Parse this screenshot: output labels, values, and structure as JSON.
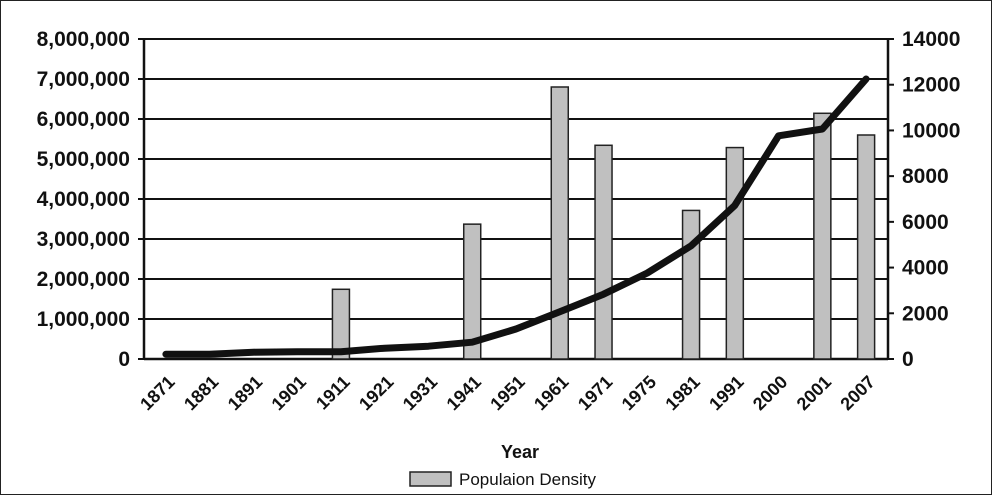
{
  "chart_data": {
    "type": "bar",
    "categories": [
      "1871",
      "1881",
      "1891",
      "1901",
      "1911",
      "1921",
      "1931",
      "1941",
      "1951",
      "1961",
      "1971",
      "1975",
      "1981",
      "1991",
      "2000",
      "2001",
      "2007"
    ],
    "xlabel": "Year",
    "y_left": {
      "ticks": [
        "0",
        "1,000,000",
        "2,000,000",
        "3,000,000",
        "4,000,000",
        "5,000,000",
        "6,000,000",
        "7,000,000",
        "8,000,000"
      ],
      "ylim": [
        0,
        8000000
      ]
    },
    "y_right": {
      "ticks": [
        "0",
        "2000",
        "4000",
        "6000",
        "8000",
        "10000",
        "12000",
        "14000"
      ],
      "ylim": [
        0,
        14000
      ]
    },
    "grid": true,
    "legend_position": "bottom",
    "series": [
      {
        "name": "Populaion Density",
        "kind": "bar",
        "axis": "right",
        "color": "#c0c0c0",
        "values": [
          null,
          null,
          null,
          null,
          3050,
          null,
          null,
          5900,
          null,
          11900,
          9350,
          null,
          6500,
          9250,
          null,
          10750,
          9800
        ]
      },
      {
        "kind": "line",
        "axis": "left",
        "color": "#111111",
        "values": [
          120000,
          120000,
          170000,
          180000,
          180000,
          270000,
          320000,
          420000,
          750000,
          1180000,
          1620000,
          2150000,
          2830000,
          3840000,
          5580000,
          5750000,
          7000000
        ]
      }
    ]
  }
}
